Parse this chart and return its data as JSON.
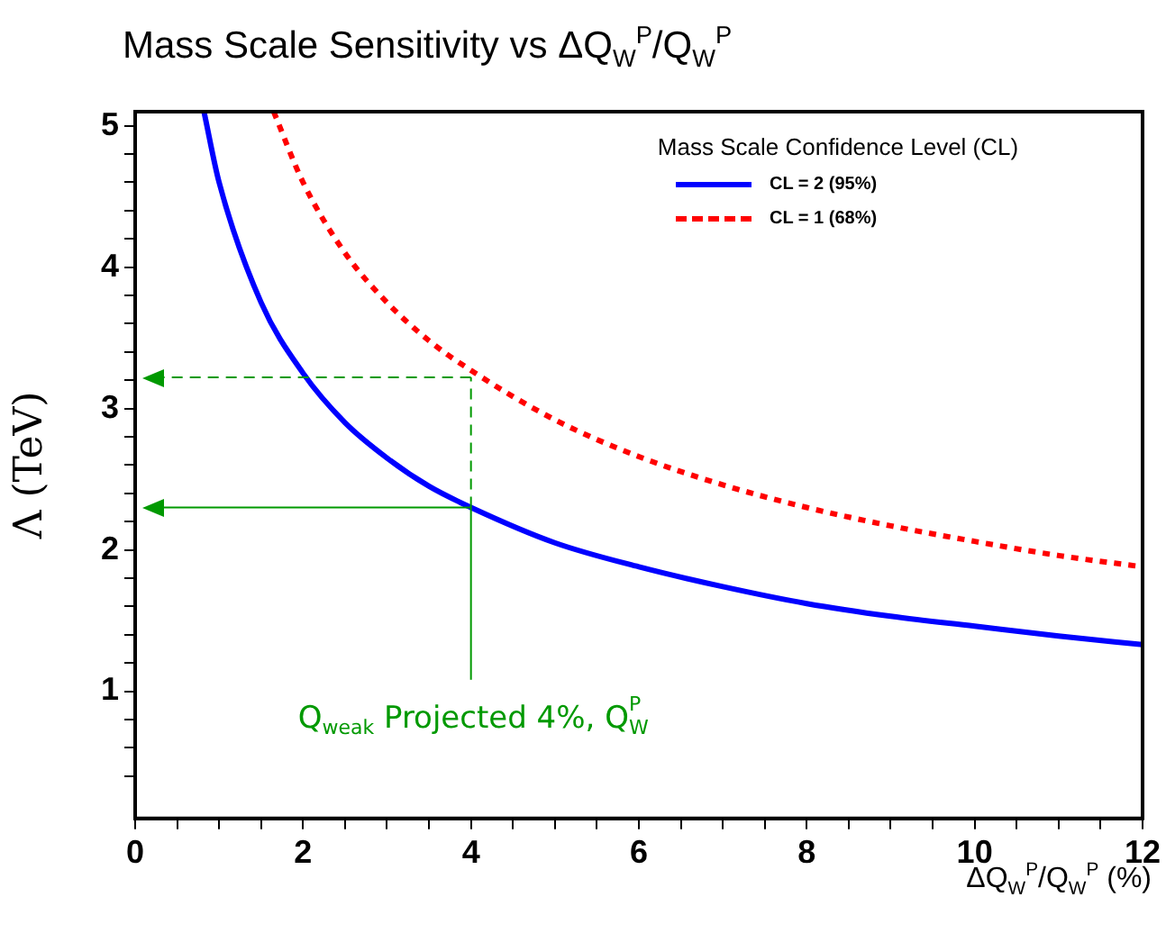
{
  "chart_data": {
    "type": "line",
    "title": "Mass Scale Sensitivity vs ΔQ$_{W}$$^{P}$/Q$_{W}$$^{P}$",
    "xlabel": "ΔQ$_{W}$$^{P}$/Q$_{W}$$^{P}$ (%)",
    "ylabel": "Λ (TeV)",
    "legend_title": "Mass Scale Confidence Level (CL)",
    "legend": "top right",
    "grid": false,
    "marker": "none",
    "xlim": [
      0,
      12
    ],
    "ylim": [
      0.1,
      5.1
    ],
    "xticks": [
      0,
      {
        "value": 0.5,
        "label": null
      },
      {
        "value": 1,
        "label": null
      },
      {
        "value": 1.5,
        "label": null
      },
      2,
      {
        "value": 2.5,
        "label": null
      },
      {
        "value": 3,
        "label": null
      },
      {
        "value": 3.5,
        "label": null
      },
      4,
      {
        "value": 4.5,
        "label": null
      },
      {
        "value": 5,
        "label": null
      },
      {
        "value": 5.5,
        "label": null
      },
      6,
      {
        "value": 6.5,
        "label": null
      },
      {
        "value": 7,
        "label": null
      },
      {
        "value": 7.5,
        "label": null
      },
      8,
      {
        "value": 8.5,
        "label": null
      },
      {
        "value": 9,
        "label": null
      },
      {
        "value": 9.5,
        "label": null
      },
      10,
      {
        "value": 10.5,
        "label": null
      },
      {
        "value": 11,
        "label": null
      },
      {
        "value": 11.5,
        "label": null
      },
      12
    ],
    "yticks": [
      {
        "value": 0.4,
        "label": null
      },
      {
        "value": 0.6,
        "label": null
      },
      {
        "value": 0.8,
        "label": null
      },
      1,
      {
        "value": 1.2,
        "label": null
      },
      {
        "value": 1.4,
        "label": null
      },
      {
        "value": 1.6,
        "label": null
      },
      {
        "value": 1.8,
        "label": null
      },
      2,
      {
        "value": 2.2,
        "label": null
      },
      {
        "value": 2.4,
        "label": null
      },
      {
        "value": 2.6,
        "label": null
      },
      {
        "value": 2.8,
        "label": null
      },
      3,
      {
        "value": 3.2,
        "label": null
      },
      {
        "value": 3.4,
        "label": null
      },
      {
        "value": 3.6,
        "label": null
      },
      {
        "value": 3.8,
        "label": null
      },
      4,
      {
        "value": 4.2,
        "label": null
      },
      {
        "value": 4.4,
        "label": null
      },
      {
        "value": 4.6,
        "label": null
      },
      {
        "value": 4.8,
        "label": null
      },
      5
    ],
    "series": [
      {
        "name": "CL = 2 (95%)",
        "color": "#0000ff",
        "line_style": "solid",
        "x": [
          0.82,
          1,
          1.5,
          2,
          2.5,
          3,
          3.5,
          4,
          5,
          6,
          7,
          8,
          9,
          10,
          11,
          12
        ],
        "values": [
          5.1,
          4.6,
          3.75,
          3.25,
          2.9,
          2.65,
          2.45,
          2.3,
          2.05,
          1.88,
          1.74,
          1.62,
          1.53,
          1.46,
          1.39,
          1.33
        ]
      },
      {
        "name": "CL = 1 (68%)",
        "color": "#ff0000",
        "line_style": "dotted",
        "x": [
          1.65,
          2,
          2.5,
          3,
          3.5,
          4,
          5,
          6,
          7,
          8,
          9,
          10,
          11,
          12
        ],
        "values": [
          5.1,
          4.6,
          4.1,
          3.75,
          3.48,
          3.27,
          2.92,
          2.66,
          2.46,
          2.3,
          2.17,
          2.06,
          1.96,
          1.88
        ]
      }
    ],
    "ref_lines": [
      {
        "axis": "y",
        "value": 3.22,
        "color": "#009900",
        "line_style": "dashed"
      },
      {
        "axis": "y",
        "value": 2.3,
        "color": "#009900",
        "line_style": "solid"
      },
      {
        "axis": "x",
        "value": 4,
        "color": "#009900",
        "line_style": "solid"
      },
      {
        "axis": "x",
        "value": 4,
        "color": "#009900",
        "line_style": "dashed"
      }
    ],
    "annotations": [
      "Q$_{weak}$ Projected 4%, Q$_{W}$$^{P}$"
    ]
  }
}
